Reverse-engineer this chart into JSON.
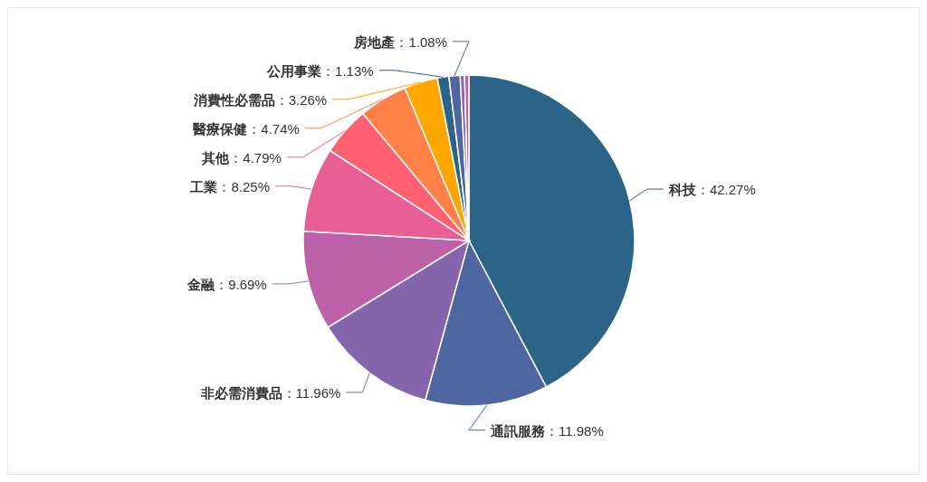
{
  "chart_data": {
    "type": "pie",
    "categories": [
      "科技",
      "通訊服務",
      "非必需消費品",
      "金融",
      "工業",
      "其他",
      "醫療保健",
      "消費性必需品",
      "公用事業",
      "房地產",
      null,
      null
    ],
    "values": [
      42.27,
      11.98,
      11.96,
      9.69,
      8.25,
      4.79,
      4.74,
      3.26,
      1.13,
      1.08,
      0.43,
      0.42
    ],
    "value_labels": [
      "：42.27%",
      "：11.98%",
      "：11.96%",
      "：9.69%",
      "：8.25%",
      "：4.79%",
      "：4.74%",
      "：3.26%",
      "：1.13%",
      "：1.08%",
      null,
      null
    ],
    "colors": [
      "#2c6488",
      "#4f67a0",
      "#8566ad",
      "#bd61a8",
      "#e85f93",
      "#ff6170",
      "#ff8148",
      "#ffa600",
      "#2c6488",
      "#4f67a0",
      "#8566ad",
      "#bd61a8"
    ]
  }
}
